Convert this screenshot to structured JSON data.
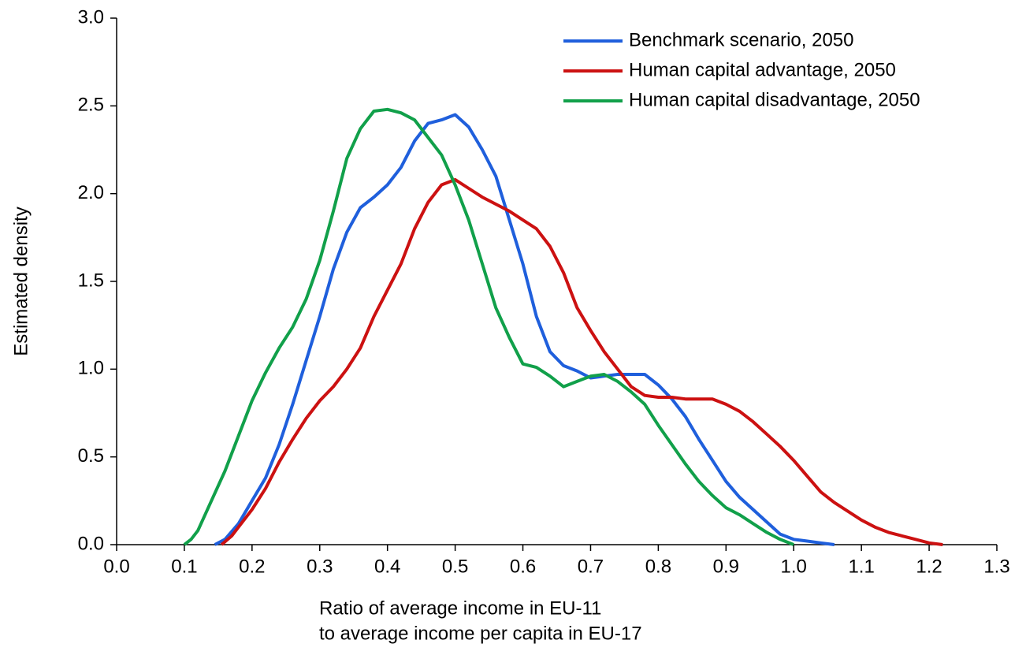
{
  "chart_data": {
    "type": "line",
    "xlabel": [
      "Ratio of average income in EU-11",
      "to average income per capita in EU-17"
    ],
    "ylabel": "Estimated density",
    "xlim": [
      0,
      1.3
    ],
    "ylim": [
      0,
      3
    ],
    "xticks": [
      {
        "value": 0,
        "label": "0.0"
      },
      0.1,
      0.2,
      0.3,
      0.4,
      0.5,
      0.6,
      0.7,
      0.8,
      0.9,
      {
        "value": 1,
        "label": "1.0"
      },
      1.1,
      1.2,
      1.3
    ],
    "yticks": [
      {
        "value": 0,
        "label": "0.0"
      },
      0.5,
      {
        "value": 1,
        "label": "1.0"
      },
      1.5,
      {
        "value": 2,
        "label": "2.0"
      },
      2.5,
      {
        "value": 3,
        "label": "3.0"
      }
    ],
    "grid": false,
    "legend": "upper right",
    "series": [
      {
        "name": "Benchmark scenario, 2050",
        "color": "#1f5fdc",
        "x": [
          0.145,
          0.16,
          0.18,
          0.2,
          0.22,
          0.24,
          0.26,
          0.28,
          0.3,
          0.32,
          0.34,
          0.36,
          0.38,
          0.4,
          0.42,
          0.44,
          0.46,
          0.48,
          0.5,
          0.52,
          0.54,
          0.56,
          0.58,
          0.6,
          0.62,
          0.64,
          0.66,
          0.68,
          0.7,
          0.72,
          0.74,
          0.76,
          0.78,
          0.8,
          0.82,
          0.84,
          0.86,
          0.88,
          0.9,
          0.92,
          0.94,
          0.96,
          0.98,
          1.0,
          1.02,
          1.04,
          1.06
        ],
        "values": [
          0,
          0.03,
          0.12,
          0.25,
          0.38,
          0.57,
          0.8,
          1.05,
          1.3,
          1.57,
          1.78,
          1.92,
          1.98,
          2.05,
          2.15,
          2.3,
          2.4,
          2.42,
          2.45,
          2.38,
          2.25,
          2.1,
          1.85,
          1.6,
          1.3,
          1.1,
          1.02,
          0.99,
          0.95,
          0.96,
          0.97,
          0.97,
          0.97,
          0.91,
          0.83,
          0.73,
          0.6,
          0.48,
          0.36,
          0.27,
          0.2,
          0.13,
          0.06,
          0.03,
          0.02,
          0.01,
          0
        ]
      },
      {
        "name": "Human capital advantage, 2050",
        "color": "#cc1111",
        "x": [
          0.155,
          0.17,
          0.18,
          0.2,
          0.22,
          0.24,
          0.26,
          0.28,
          0.3,
          0.32,
          0.34,
          0.36,
          0.38,
          0.4,
          0.42,
          0.44,
          0.46,
          0.48,
          0.5,
          0.52,
          0.54,
          0.56,
          0.58,
          0.6,
          0.62,
          0.64,
          0.66,
          0.68,
          0.7,
          0.72,
          0.74,
          0.76,
          0.78,
          0.8,
          0.82,
          0.84,
          0.86,
          0.88,
          0.9,
          0.92,
          0.94,
          0.96,
          0.98,
          1.0,
          1.02,
          1.04,
          1.06,
          1.08,
          1.1,
          1.12,
          1.14,
          1.16,
          1.18,
          1.2,
          1.22
        ],
        "values": [
          0,
          0.05,
          0.1,
          0.2,
          0.32,
          0.47,
          0.6,
          0.72,
          0.82,
          0.9,
          1.0,
          1.12,
          1.3,
          1.45,
          1.6,
          1.8,
          1.95,
          2.05,
          2.08,
          2.03,
          1.98,
          1.94,
          1.9,
          1.85,
          1.8,
          1.7,
          1.55,
          1.35,
          1.22,
          1.1,
          1.0,
          0.9,
          0.85,
          0.84,
          0.84,
          0.83,
          0.83,
          0.83,
          0.8,
          0.76,
          0.7,
          0.63,
          0.56,
          0.48,
          0.39,
          0.3,
          0.24,
          0.19,
          0.14,
          0.1,
          0.07,
          0.05,
          0.03,
          0.01,
          0
        ]
      },
      {
        "name": "Human capital disadvantage, 2050",
        "color": "#11a04a",
        "x": [
          0.1,
          0.11,
          0.12,
          0.14,
          0.16,
          0.18,
          0.2,
          0.22,
          0.24,
          0.26,
          0.28,
          0.3,
          0.32,
          0.34,
          0.36,
          0.38,
          0.4,
          0.42,
          0.44,
          0.46,
          0.48,
          0.5,
          0.52,
          0.54,
          0.56,
          0.58,
          0.6,
          0.62,
          0.64,
          0.66,
          0.68,
          0.7,
          0.72,
          0.74,
          0.76,
          0.78,
          0.8,
          0.82,
          0.84,
          0.86,
          0.88,
          0.9,
          0.92,
          0.94,
          0.96,
          0.98,
          1.0
        ],
        "values": [
          0,
          0.03,
          0.08,
          0.25,
          0.42,
          0.62,
          0.82,
          0.98,
          1.12,
          1.24,
          1.4,
          1.62,
          1.9,
          2.2,
          2.37,
          2.47,
          2.48,
          2.46,
          2.42,
          2.32,
          2.22,
          2.05,
          1.85,
          1.6,
          1.35,
          1.18,
          1.03,
          1.01,
          0.96,
          0.9,
          0.93,
          0.96,
          0.97,
          0.93,
          0.87,
          0.8,
          0.68,
          0.57,
          0.46,
          0.36,
          0.28,
          0.21,
          0.17,
          0.12,
          0.07,
          0.03,
          0
        ]
      }
    ]
  }
}
